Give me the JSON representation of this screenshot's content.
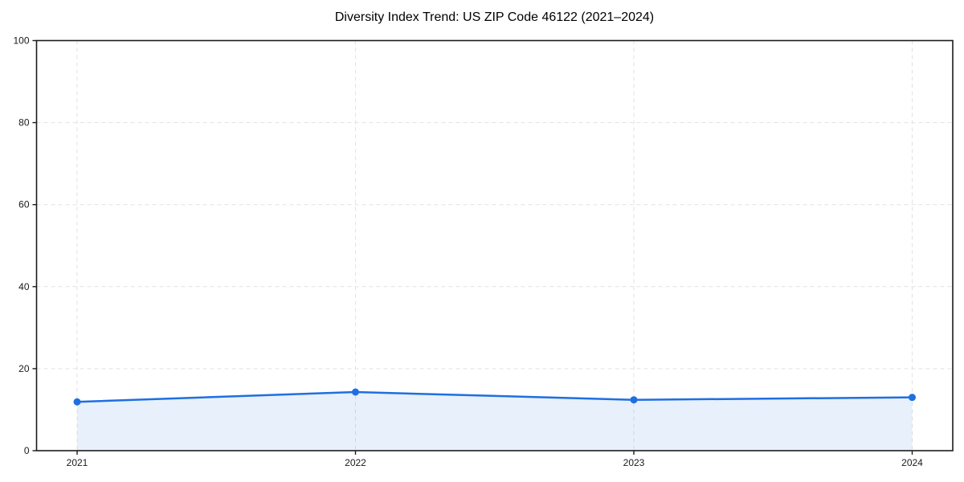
{
  "chart_data": {
    "type": "line",
    "title": "Diversity Index Trend: US ZIP Code 46122 (2021–2024)",
    "x": [
      "2021",
      "2022",
      "2023",
      "2024"
    ],
    "series": [
      {
        "name": "Diversity Index",
        "values": [
          11.9,
          14.3,
          12.4,
          13.0
        ]
      }
    ],
    "xlabel": "",
    "ylabel": "",
    "ylim": [
      0,
      100
    ],
    "yticks": [
      0,
      20,
      40,
      60,
      80,
      100
    ],
    "grid": "dashed-both-axes",
    "legend": "none",
    "area_fill": true,
    "marker": "circle",
    "colors": {
      "line": "#1f6fe0",
      "marker": "#1f6fe0",
      "fill": "#1f6fe0",
      "fill_opacity": 0.1,
      "grid": "#e2e2e2",
      "spine": "#1c1c1c",
      "text": "#1a1a1a",
      "background": "#ffffff"
    }
  }
}
